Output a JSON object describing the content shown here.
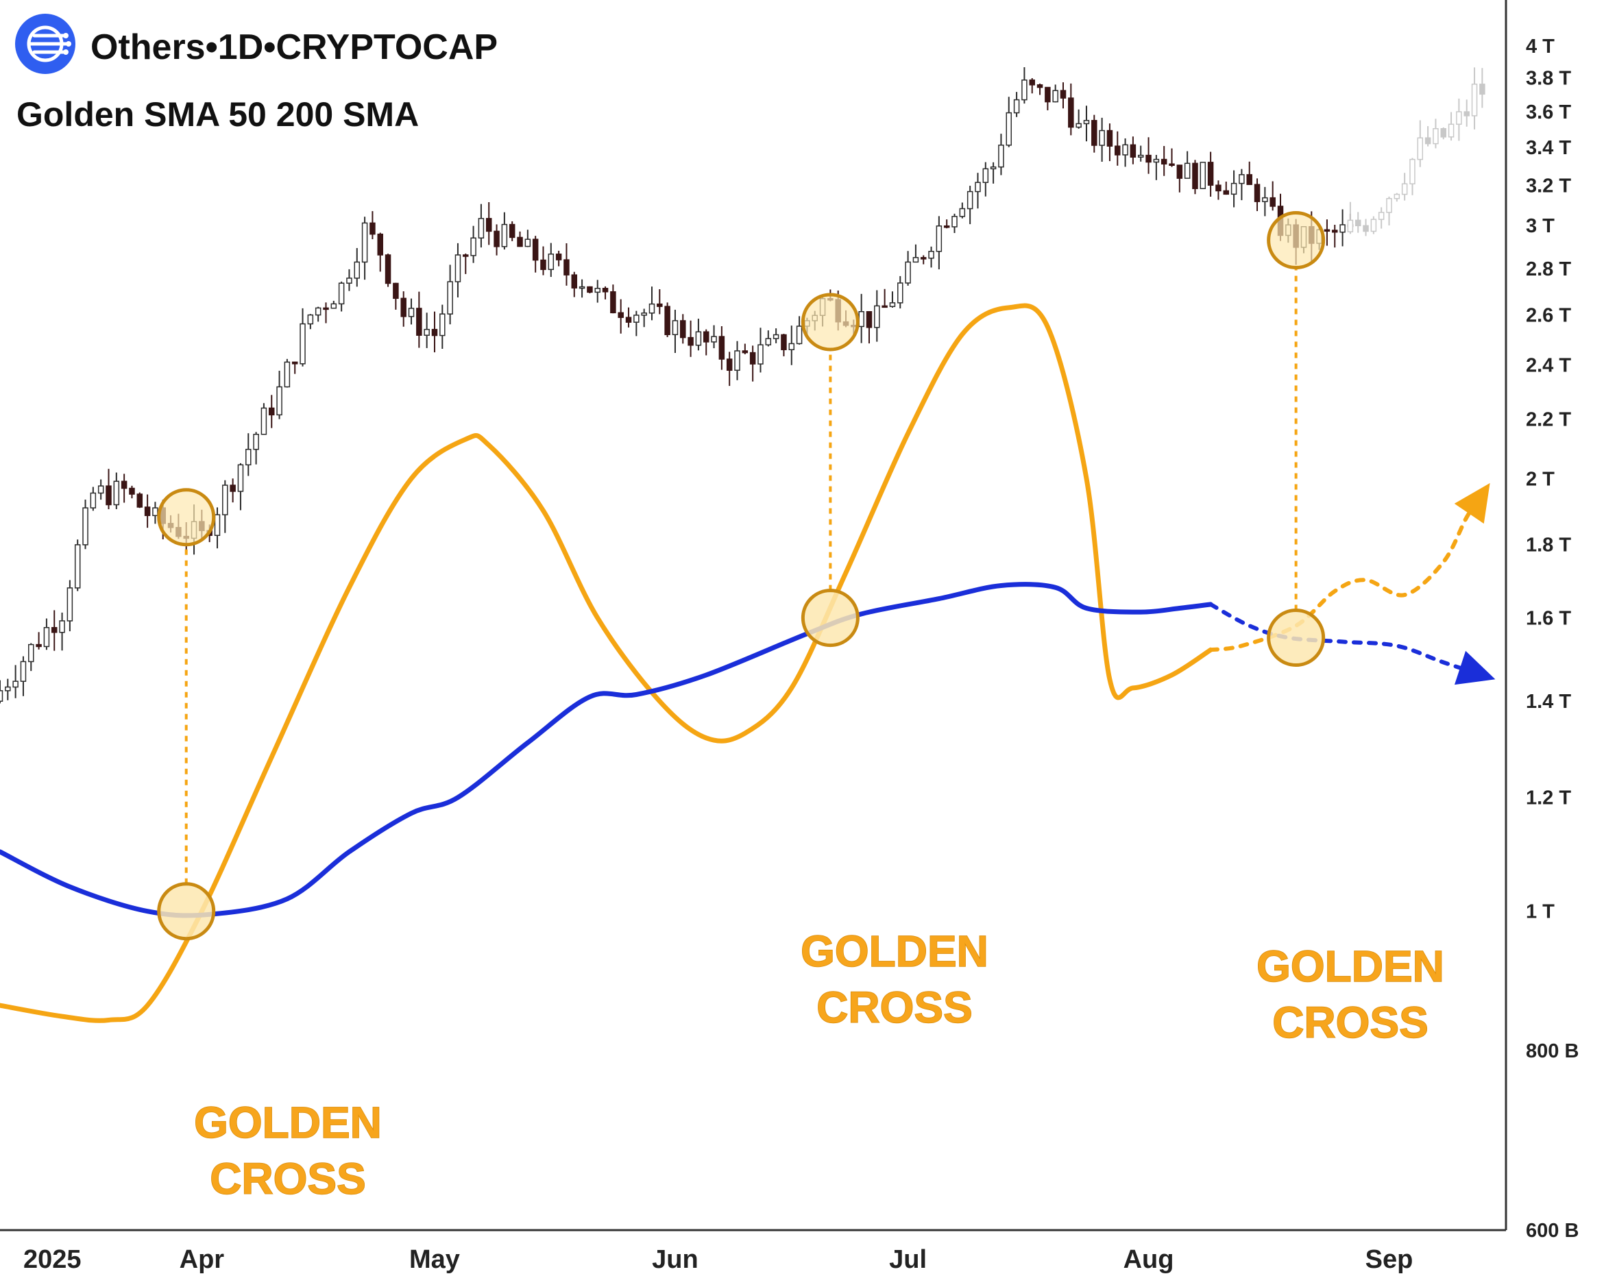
{
  "header": {
    "title": "Others•1D•CRYPTOCAP",
    "subtitle": "Golden SMA 50 200 SMA",
    "logo_icon": "cryptocap-logo-icon"
  },
  "chart_data": {
    "type": "candlestick",
    "title": "Others•1D•CRYPTOCAP",
    "subtitle": "Golden SMA 50 200 SMA",
    "y_scale": "log",
    "ylim": [
      580000000000,
      4200000000000
    ],
    "y_ticks": [
      {
        "value": 4000000000000,
        "label": "4 T"
      },
      {
        "value": 3800000000000,
        "label": "3.8 T"
      },
      {
        "value": 3600000000000,
        "label": "3.6 T"
      },
      {
        "value": 3400000000000,
        "label": "3.4 T"
      },
      {
        "value": 3200000000000,
        "label": "3.2 T"
      },
      {
        "value": 3000000000000,
        "label": "3 T"
      },
      {
        "value": 2800000000000,
        "label": "2.8 T"
      },
      {
        "value": 2600000000000,
        "label": "2.6 T"
      },
      {
        "value": 2400000000000,
        "label": "2.4 T"
      },
      {
        "value": 2200000000000,
        "label": "2.2 T"
      },
      {
        "value": 2000000000000,
        "label": "2 T"
      },
      {
        "value": 1800000000000,
        "label": "1.8 T"
      },
      {
        "value": 1600000000000,
        "label": "1.6 T"
      },
      {
        "value": 1400000000000,
        "label": "1.4 T"
      },
      {
        "value": 1200000000000,
        "label": "1.2 T"
      },
      {
        "value": 1000000000000,
        "label": "1 T"
      },
      {
        "value": 800000000000,
        "label": "800 B"
      },
      {
        "value": 600000000000,
        "label": "600 B"
      }
    ],
    "x_range": [
      "2025-03-06",
      "2025-09-15"
    ],
    "x_ticks": [
      {
        "date": "2025-03-08",
        "label": "2025"
      },
      {
        "date": "2025-04-01",
        "label": "Apr"
      },
      {
        "date": "2025-05-01",
        "label": "May"
      },
      {
        "date": "2025-06-01",
        "label": "Jun"
      },
      {
        "date": "2025-07-01",
        "label": "Jul"
      },
      {
        "date": "2025-08-01",
        "label": "Aug"
      },
      {
        "date": "2025-09-01",
        "label": "Sep"
      }
    ],
    "price_path": [
      [
        "2025-03-06",
        1.4
      ],
      [
        "2025-03-15",
        1.62
      ],
      [
        "2025-03-19",
        1.95
      ],
      [
        "2025-03-23",
        1.96
      ],
      [
        "2025-03-27",
        1.87
      ],
      [
        "2025-04-02",
        1.82
      ],
      [
        "2025-04-07",
        2.05
      ],
      [
        "2025-04-12",
        2.3
      ],
      [
        "2025-04-16",
        2.6
      ],
      [
        "2025-04-20",
        2.72
      ],
      [
        "2025-04-23",
        2.98
      ],
      [
        "2025-04-25",
        2.88
      ],
      [
        "2025-04-28",
        2.6
      ],
      [
        "2025-05-02",
        2.52
      ],
      [
        "2025-05-05",
        2.8
      ],
      [
        "2025-05-08",
        3.0
      ],
      [
        "2025-05-12",
        2.92
      ],
      [
        "2025-05-16",
        2.83
      ],
      [
        "2025-05-21",
        2.75
      ],
      [
        "2025-05-24",
        2.65
      ],
      [
        "2025-05-30",
        2.6
      ],
      [
        "2025-06-02",
        2.55
      ],
      [
        "2025-06-06",
        2.48
      ],
      [
        "2025-06-09",
        2.42
      ],
      [
        "2025-06-13",
        2.45
      ],
      [
        "2025-06-17",
        2.5
      ],
      [
        "2025-06-21",
        2.66
      ],
      [
        "2025-06-25",
        2.6
      ],
      [
        "2025-06-28",
        2.58
      ],
      [
        "2025-07-01",
        2.72
      ],
      [
        "2025-07-04",
        2.88
      ],
      [
        "2025-07-07",
        3.05
      ],
      [
        "2025-07-10",
        3.18
      ],
      [
        "2025-07-13",
        3.3
      ],
      [
        "2025-07-15",
        3.6
      ],
      [
        "2025-07-17",
        3.74
      ],
      [
        "2025-07-19",
        3.7
      ],
      [
        "2025-07-22",
        3.68
      ],
      [
        "2025-07-24",
        3.5
      ],
      [
        "2025-07-27",
        3.43
      ],
      [
        "2025-07-30",
        3.4
      ],
      [
        "2025-08-01",
        3.42
      ],
      [
        "2025-08-04",
        3.35
      ],
      [
        "2025-08-07",
        3.26
      ],
      [
        "2025-08-10",
        3.24
      ],
      [
        "2025-08-13",
        3.2
      ],
      [
        "2025-08-16",
        3.17
      ],
      [
        "2025-08-18",
        3.03
      ],
      [
        "2025-08-21",
        2.93
      ],
      [
        "2025-08-25",
        2.95
      ],
      [
        "2025-08-27",
        2.97
      ]
    ],
    "projection_path": [
      [
        "2025-08-27",
        2.97
      ],
      [
        "2025-08-30",
        3.02
      ],
      [
        "2025-09-03",
        3.2
      ],
      [
        "2025-09-06",
        3.4
      ],
      [
        "2025-09-09",
        3.46
      ],
      [
        "2025-09-12",
        3.6
      ],
      [
        "2025-09-13",
        3.72
      ]
    ],
    "series": [
      {
        "style": "solid",
        "color": "#f5a513",
        "values": [
          [
            "2025-03-06",
            0.86
          ],
          [
            "2025-03-14",
            0.845
          ],
          [
            "2025-03-20",
            0.84
          ],
          [
            "2025-03-25",
            0.86
          ],
          [
            "2025-04-01",
            1.0
          ],
          [
            "2025-04-10",
            1.28
          ],
          [
            "2025-04-20",
            1.68
          ],
          [
            "2025-04-28",
            2.0
          ],
          [
            "2025-05-05",
            2.13
          ],
          [
            "2025-05-08",
            2.11
          ],
          [
            "2025-05-15",
            1.9
          ],
          [
            "2025-05-22",
            1.6
          ],
          [
            "2025-05-30",
            1.4
          ],
          [
            "2025-06-05",
            1.32
          ],
          [
            "2025-06-10",
            1.33
          ],
          [
            "2025-06-16",
            1.43
          ],
          [
            "2025-06-23",
            1.72
          ],
          [
            "2025-07-01",
            2.15
          ],
          [
            "2025-07-08",
            2.52
          ],
          [
            "2025-07-14",
            2.63
          ],
          [
            "2025-07-19",
            2.55
          ],
          [
            "2025-07-24",
            2.0
          ],
          [
            "2025-07-27",
            1.45
          ],
          [
            "2025-07-30",
            1.43
          ],
          [
            "2025-08-04",
            1.46
          ],
          [
            "2025-08-09",
            1.52
          ]
        ]
      },
      {
        "style": "solid",
        "color": "#1a2ed9",
        "values": [
          [
            "2025-03-06",
            1.1
          ],
          [
            "2025-03-15",
            1.04
          ],
          [
            "2025-03-25",
            1.0
          ],
          [
            "2025-04-02",
            0.995
          ],
          [
            "2025-04-12",
            1.02
          ],
          [
            "2025-04-20",
            1.1
          ],
          [
            "2025-04-28",
            1.17
          ],
          [
            "2025-05-04",
            1.2
          ],
          [
            "2025-05-13",
            1.31
          ],
          [
            "2025-05-21",
            1.41
          ],
          [
            "2025-05-27",
            1.415
          ],
          [
            "2025-06-05",
            1.46
          ],
          [
            "2025-06-18",
            1.56
          ],
          [
            "2025-06-25",
            1.61
          ],
          [
            "2025-07-05",
            1.65
          ],
          [
            "2025-07-13",
            1.685
          ],
          [
            "2025-07-20",
            1.68
          ],
          [
            "2025-07-24",
            1.625
          ],
          [
            "2025-07-31",
            1.615
          ],
          [
            "2025-08-05",
            1.625
          ],
          [
            "2025-08-09",
            1.635
          ]
        ]
      },
      {
        "style": "dotted",
        "color": "#f5a513",
        "values": [
          [
            "2025-08-09",
            1.52
          ],
          [
            "2025-08-13",
            1.53
          ],
          [
            "2025-08-20",
            1.58
          ],
          [
            "2025-08-25",
            1.67
          ],
          [
            "2025-08-29",
            1.7
          ],
          [
            "2025-09-03",
            1.66
          ],
          [
            "2025-09-08",
            1.75
          ],
          [
            "2025-09-11",
            1.88
          ],
          [
            "2025-09-13",
            1.95
          ]
        ]
      },
      {
        "style": "dotted",
        "color": "#1a2ed9",
        "values": [
          [
            "2025-08-09",
            1.635
          ],
          [
            "2025-08-14",
            1.58
          ],
          [
            "2025-08-19",
            1.55
          ],
          [
            "2025-08-26",
            1.54
          ],
          [
            "2025-09-02",
            1.53
          ],
          [
            "2025-09-08",
            1.49
          ],
          [
            "2025-09-13",
            1.46
          ]
        ]
      }
    ],
    "annotations": [
      {
        "label": "GOLDEN CROSS",
        "text_lines": [
          "GOLDEN",
          "CROSS"
        ],
        "cross_date": "2025-03-30",
        "cross_value": 1.0,
        "candle_date": "2025-03-30",
        "candle_value": 1.88
      },
      {
        "label": "GOLDEN CROSS",
        "text_lines": [
          "GOLDEN",
          "CROSS"
        ],
        "cross_date": "2025-06-21",
        "cross_value": 1.6,
        "candle_date": "2025-06-21",
        "candle_value": 2.57
      },
      {
        "label": "GOLDEN CROSS",
        "text_lines": [
          "GOLDEN",
          "CROSS"
        ],
        "cross_date": "2025-08-20",
        "cross_value": 1.55,
        "candle_date": "2025-08-20",
        "candle_value": 2.93
      }
    ],
    "grid": false,
    "legend": "none",
    "colors": {
      "candle_up": "#2b2b2b",
      "candle_down": "#3a1515",
      "projection": "#c8c8c8",
      "accent": "#f5a513",
      "slow_sma": "#1a2ed9",
      "marker_fill": "#fde8b0",
      "marker_stroke": "#c98a12"
    }
  }
}
